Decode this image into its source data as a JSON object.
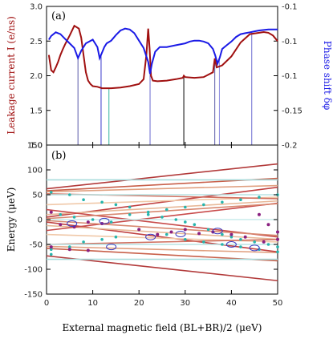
{
  "chart_data": [
    {
      "type": "line",
      "panel_label": "(a)",
      "ylabel_left": "Leakage current I (e/ns)",
      "ylabel_right": "Phase shift δφ",
      "xlim": [
        0,
        50
      ],
      "ylim_left": [
        1.0,
        3.0
      ],
      "ylim_right": [
        -0.2,
        -0.05
      ],
      "xticks": [
        0,
        10,
        20,
        30,
        40,
        50
      ],
      "yticks_left": [
        "1.0",
        "1.5",
        "2.0",
        "2.5",
        "3.0"
      ],
      "yticks_right": [
        "-0.2",
        "-0.15",
        "-0.1",
        "-0.1",
        "-0.1"
      ],
      "yticks_right_pos": [
        -0.2,
        -0.1625,
        -0.125,
        -0.0875,
        -0.05
      ],
      "colors": {
        "current": "#a01010",
        "phase": "#1a1ae6"
      },
      "series": [
        {
          "axis": "left",
          "color": "#a01010",
          "x": [
            0.5,
            1,
            1.5,
            2,
            2.5,
            3,
            3.5,
            4,
            5,
            6,
            7,
            7.5,
            8,
            8.5,
            9,
            9.5,
            10,
            11,
            12,
            13,
            14,
            16,
            18,
            20,
            21,
            21.6,
            22,
            22.3,
            22.6,
            23,
            24,
            26,
            28,
            29.5,
            29.7,
            30,
            32,
            34,
            36,
            36.4,
            36.8,
            37.2,
            38,
            40,
            42,
            44,
            46,
            47,
            48,
            49,
            50
          ],
          "y": [
            2.3,
            2.08,
            2.05,
            2.12,
            2.2,
            2.3,
            2.38,
            2.45,
            2.58,
            2.72,
            2.68,
            2.55,
            2.3,
            2.05,
            1.93,
            1.88,
            1.85,
            1.84,
            1.82,
            1.82,
            1.82,
            1.83,
            1.85,
            1.88,
            1.95,
            2.3,
            2.68,
            2.4,
            2.0,
            1.93,
            1.92,
            1.93,
            1.95,
            1.97,
            2.0,
            1.98,
            1.97,
            1.98,
            2.05,
            2.25,
            2.12,
            2.13,
            2.15,
            2.28,
            2.48,
            2.6,
            2.62,
            2.63,
            2.62,
            2.58,
            2.5
          ]
        },
        {
          "axis": "right",
          "color": "#1a1ae6",
          "x": [
            0.5,
            1,
            2,
            3,
            4,
            5,
            6,
            6.8,
            7.5,
            8.5,
            10,
            11,
            11.5,
            12,
            12.5,
            13,
            14,
            15,
            16,
            17,
            18,
            19,
            20,
            21,
            22,
            22.4,
            22.8,
            23.5,
            24.5,
            26,
            28,
            30,
            31,
            32,
            33,
            34,
            35,
            36,
            36.5,
            37,
            37.5,
            38,
            39,
            40,
            41,
            42,
            43,
            44,
            45,
            46,
            48,
            50
          ],
          "y": [
            -0.086,
            -0.082,
            -0.078,
            -0.08,
            -0.085,
            -0.09,
            -0.095,
            -0.106,
            -0.098,
            -0.09,
            -0.086,
            -0.094,
            -0.106,
            -0.1,
            -0.094,
            -0.09,
            -0.087,
            -0.081,
            -0.076,
            -0.074,
            -0.075,
            -0.079,
            -0.087,
            -0.095,
            -0.11,
            -0.123,
            -0.112,
            -0.099,
            -0.094,
            -0.094,
            -0.092,
            -0.09,
            -0.088,
            -0.087,
            -0.087,
            -0.088,
            -0.09,
            -0.096,
            -0.103,
            -0.112,
            -0.105,
            -0.096,
            -0.092,
            -0.088,
            -0.083,
            -0.08,
            -0.079,
            -0.078,
            -0.077,
            -0.076,
            -0.075,
            -0.075
          ]
        }
      ],
      "markers": [
        {
          "x": 6.8,
          "color": "#5a5aa8",
          "to": "phase"
        },
        {
          "x": 11.8,
          "color": "#3a3acc",
          "to": "phase"
        },
        {
          "x": 13.5,
          "color": "#33b3a0",
          "to": "current"
        },
        {
          "x": 22.4,
          "color": "#6a6ad0",
          "to": "phase"
        },
        {
          "x": 29.7,
          "color": "#000000",
          "to": "current"
        },
        {
          "x": 36.4,
          "color": "#5a5aa8",
          "to": "current"
        },
        {
          "x": 37.4,
          "color": "#8a8ae0",
          "to": "phase"
        },
        {
          "x": 44.4,
          "color": "#6a6ad0",
          "to": "phase"
        }
      ]
    },
    {
      "type": "line",
      "panel_label": "(b)",
      "ylabel": "Energy (μeV)",
      "xlabel": "External magnetic field (BL+BR)/2 (μeV)",
      "xlim": [
        0,
        50
      ],
      "ylim": [
        -150,
        150
      ],
      "xticks": [
        0,
        10,
        20,
        30,
        40,
        50
      ],
      "yticks": [
        -150,
        -100,
        -50,
        0,
        50,
        100,
        150
      ],
      "lines": [
        {
          "y0": 62,
          "slope": 1.0,
          "color": "#b23a3a"
        },
        {
          "y0": -73,
          "slope": -1.0,
          "color": "#b23a3a"
        },
        {
          "y0": 58,
          "slope": 0.5,
          "color": "#c8604a"
        },
        {
          "y0": -58,
          "slope": -0.5,
          "color": "#c8604a"
        },
        {
          "y0": 56,
          "slope": 0.25,
          "color": "#e0a080"
        },
        {
          "y0": -54,
          "slope": -0.25,
          "color": "#e0a080"
        },
        {
          "y0": 5,
          "slope": 1.2,
          "color": "#c04040"
        },
        {
          "y0": -5,
          "slope": -1.2,
          "color": "#c04040"
        },
        {
          "y0": 10,
          "slope": 0.55,
          "color": "#e8b898"
        },
        {
          "y0": -12,
          "slope": -0.55,
          "color": "#e8b898"
        },
        {
          "y0": 20,
          "slope": -1.1,
          "color": "#c84a4a"
        },
        {
          "y0": -22,
          "slope": 1.1,
          "color": "#c84a4a"
        },
        {
          "y0": 30,
          "slope": 0.3,
          "color": "#f0c8a8"
        },
        {
          "y0": -30,
          "slope": -0.3,
          "color": "#f0c8a8"
        },
        {
          "y0": 52,
          "slope": -0.2,
          "color": "#d07060"
        },
        {
          "y0": -50,
          "slope": 0.2,
          "color": "#d07060"
        },
        {
          "y0": 2,
          "slope": 0.6,
          "color": "#d88870"
        },
        {
          "y0": -2,
          "slope": -0.6,
          "color": "#d88870"
        },
        {
          "y0": 80,
          "slope": 0,
          "color": "#a8dcdc"
        },
        {
          "y0": 50,
          "slope": 0,
          "color": "#b8e4e4"
        },
        {
          "y0": -50,
          "slope": 0,
          "color": "#b8e4e4"
        },
        {
          "y0": -80,
          "slope": 0,
          "color": "#a8dcdc"
        },
        {
          "y0": 0,
          "slope": 0,
          "color": "#c8ecec"
        }
      ],
      "dots": {
        "teal": [
          [
            1,
            55
          ],
          [
            1,
            -60
          ],
          [
            1,
            -70
          ],
          [
            5,
            50
          ],
          [
            5,
            -55
          ],
          [
            8,
            40
          ],
          [
            8,
            -45
          ],
          [
            12,
            35
          ],
          [
            12,
            -40
          ],
          [
            15,
            30
          ],
          [
            15,
            -35
          ],
          [
            18,
            25
          ],
          [
            22,
            10
          ],
          [
            25,
            5
          ],
          [
            28,
            0
          ],
          [
            30,
            -5
          ],
          [
            32,
            -10
          ],
          [
            35,
            -20
          ],
          [
            38,
            -30
          ],
          [
            40,
            -35
          ],
          [
            42,
            -40
          ],
          [
            45,
            -45
          ],
          [
            48,
            -50
          ],
          [
            50,
            -55
          ],
          [
            3,
            10
          ],
          [
            6,
            5
          ],
          [
            10,
            0
          ],
          [
            14,
            -5
          ],
          [
            20,
            -20
          ],
          [
            26,
            -30
          ],
          [
            30,
            -40
          ],
          [
            34,
            -45
          ],
          [
            38,
            -50
          ],
          [
            42,
            -55
          ],
          [
            46,
            -60
          ],
          [
            50,
            -65
          ],
          [
            50,
            50
          ],
          [
            46,
            45
          ],
          [
            42,
            40
          ],
          [
            38,
            35
          ],
          [
            34,
            30
          ],
          [
            30,
            25
          ],
          [
            26,
            20
          ],
          [
            22,
            15
          ],
          [
            18,
            10
          ]
        ],
        "purple": [
          [
            1,
            15
          ],
          [
            3,
            -10
          ],
          [
            6,
            -15
          ],
          [
            9,
            -5
          ],
          [
            12,
            -8
          ],
          [
            20,
            -20
          ],
          [
            24,
            -30
          ],
          [
            27,
            -25
          ],
          [
            30,
            -20
          ],
          [
            33,
            -28
          ],
          [
            36,
            -25
          ],
          [
            40,
            -30
          ],
          [
            43,
            -35
          ],
          [
            47,
            -45
          ],
          [
            50,
            -40
          ],
          [
            1,
            -55
          ],
          [
            5,
            -60
          ],
          [
            9,
            -62
          ],
          [
            50,
            -25
          ],
          [
            48,
            -10
          ],
          [
            46,
            10
          ]
        ]
      },
      "ellipses": [
        [
          5.5,
          -8
        ],
        [
          12.5,
          -3
        ],
        [
          22.5,
          -35
        ],
        [
          29,
          -29
        ],
        [
          37,
          -23
        ],
        [
          40,
          -50
        ],
        [
          45,
          -57
        ],
        [
          14,
          -55
        ]
      ]
    }
  ]
}
